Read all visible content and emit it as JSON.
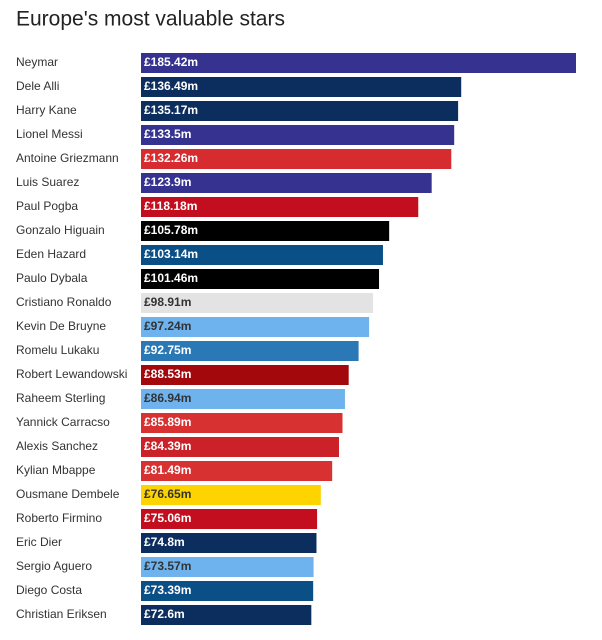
{
  "chart_data": {
    "type": "bar",
    "orientation": "horizontal",
    "title": "Europe's most valuable stars",
    "categories": [
      "Neymar",
      "Dele Alli",
      "Harry Kane",
      "Lionel Messi",
      "Antoine Griezmann",
      "Luis Suarez",
      "Paul Pogba",
      "Gonzalo Higuain",
      "Eden Hazard",
      "Paulo Dybala",
      "Cristiano Ronaldo",
      "Kevin De Bruyne",
      "Romelu Lukaku",
      "Robert Lewandowski",
      "Raheem Sterling",
      "Yannick Carracso",
      "Alexis Sanchez",
      "Kylian Mbappe",
      "Ousmane Dembele",
      "Roberto Firmino",
      "Eric Dier",
      "Sergio Aguero",
      "Diego Costa",
      "Christian Eriksen"
    ],
    "values": [
      185.42,
      136.49,
      135.17,
      133.5,
      132.26,
      123.9,
      118.18,
      105.78,
      103.14,
      101.46,
      98.91,
      97.24,
      92.75,
      88.53,
      86.94,
      85.89,
      84.39,
      81.49,
      76.65,
      75.06,
      74.8,
      73.57,
      73.39,
      72.6
    ],
    "value_labels": [
      "£185.42m",
      "£136.49m",
      "£135.17m",
      "£133.5m",
      "£132.26m",
      "£123.9m",
      "£118.18m",
      "£105.78m",
      "£103.14m",
      "£101.46m",
      "£98.91m",
      "£97.24m",
      "£92.75m",
      "£88.53m",
      "£86.94m",
      "£85.89m",
      "£84.39m",
      "£81.49m",
      "£76.65m",
      "£75.06m",
      "£74.8m",
      "£73.57m",
      "£73.39m",
      "£72.6m"
    ],
    "colors": [
      "#35338f",
      "#0c2e5e",
      "#0c2e5e",
      "#35338f",
      "#d62b2f",
      "#35338f",
      "#c20e1e",
      "#000000",
      "#0b4f87",
      "#000000",
      "#e3e3e3",
      "#6fb3ee",
      "#2a78b5",
      "#a3090c",
      "#6fb3ee",
      "#d83131",
      "#cb2128",
      "#d83131",
      "#fdd400",
      "#c20e1e",
      "#0c2e5e",
      "#6fb3ee",
      "#0b4f87",
      "#0c2e5e"
    ]
  }
}
